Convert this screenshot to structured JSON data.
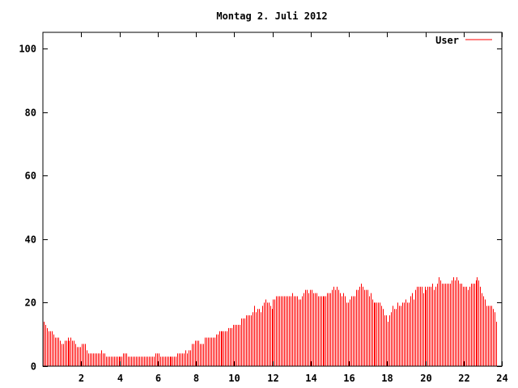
{
  "chart_data": {
    "type": "bar",
    "style": "impulses",
    "title": "Montag 2. Juli 2012",
    "xlabel": "",
    "ylabel": "",
    "xlim": [
      0,
      24
    ],
    "ylim": [
      0,
      105
    ],
    "x_step_hours": 0.0833333,
    "xticks": [
      2,
      4,
      6,
      8,
      10,
      12,
      14,
      16,
      18,
      20,
      22,
      24
    ],
    "yticks": [
      0,
      20,
      40,
      60,
      80,
      100
    ],
    "grid": false,
    "legend_position": "top-right",
    "series": [
      {
        "name": "User",
        "color": "#ff0000",
        "values": [
          14,
          13,
          12,
          11,
          11,
          11,
          10,
          9,
          9,
          9,
          8,
          7,
          7,
          8,
          8,
          9,
          8,
          9,
          8,
          8,
          7,
          6,
          6,
          6,
          7,
          7,
          7,
          5,
          4,
          4,
          4,
          4,
          4,
          4,
          4,
          4,
          5,
          4,
          4,
          3,
          3,
          3,
          3,
          3,
          3,
          3,
          3,
          3,
          3,
          3,
          4,
          4,
          4,
          3,
          3,
          3,
          3,
          3,
          3,
          3,
          3,
          3,
          3,
          3,
          3,
          3,
          3,
          3,
          3,
          3,
          4,
          4,
          4,
          3,
          3,
          3,
          3,
          3,
          3,
          3,
          3,
          3,
          3,
          3,
          4,
          4,
          4,
          4,
          4,
          5,
          4,
          5,
          5,
          7,
          7,
          8,
          8,
          8,
          7,
          7,
          7,
          9,
          9,
          9,
          9,
          9,
          9,
          9,
          10,
          10,
          11,
          11,
          11,
          11,
          11,
          11,
          12,
          12,
          12,
          13,
          13,
          13,
          13,
          13,
          15,
          15,
          15,
          16,
          16,
          16,
          16,
          17,
          19,
          17,
          18,
          18,
          17,
          19,
          20,
          21,
          20,
          20,
          19,
          18,
          21,
          21,
          22,
          22,
          22,
          22,
          22,
          22,
          22,
          22,
          22,
          22,
          23,
          22,
          22,
          22,
          21,
          21,
          22,
          23,
          24,
          24,
          23,
          24,
          24,
          23,
          23,
          23,
          22,
          22,
          22,
          22,
          22,
          22,
          23,
          23,
          23,
          24,
          25,
          24,
          25,
          24,
          23,
          22,
          23,
          22,
          20,
          20,
          21,
          22,
          22,
          22,
          24,
          24,
          25,
          26,
          25,
          24,
          24,
          24,
          22,
          23,
          21,
          20,
          20,
          20,
          20,
          20,
          19,
          18,
          16,
          16,
          14,
          16,
          17,
          19,
          18,
          18,
          20,
          19,
          19,
          20,
          20,
          21,
          20,
          20,
          22,
          23,
          21,
          24,
          25,
          25,
          25,
          25,
          23,
          25,
          24,
          25,
          25,
          25,
          26,
          24,
          25,
          26,
          28,
          27,
          26,
          26,
          26,
          26,
          26,
          26,
          27,
          28,
          27,
          28,
          27,
          26,
          26,
          25,
          25,
          25,
          24,
          25,
          26,
          26,
          26,
          27,
          28,
          27,
          25,
          23,
          22,
          21,
          19,
          19,
          19,
          19,
          18,
          17,
          14
        ]
      }
    ]
  }
}
